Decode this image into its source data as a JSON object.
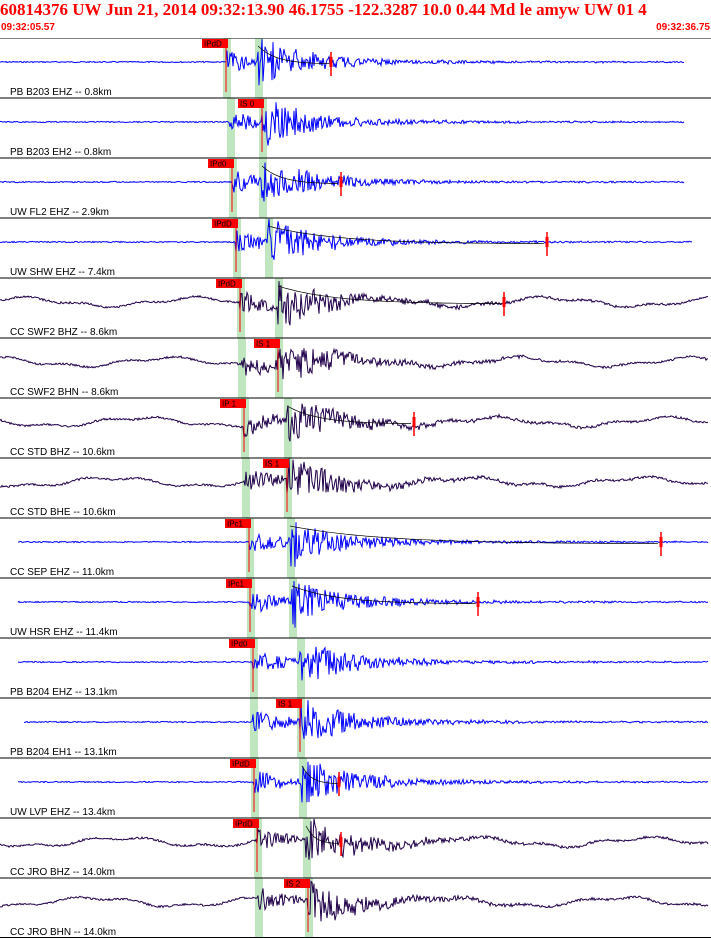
{
  "header": {
    "title": "60814376 UW Jun 21, 2014 09:32:13.90   46.1755 -122.3287 10.0 0.44 Md le amyw UW 01   4",
    "start_time": "09:32:05.57",
    "end_time": "09:32:36.75"
  },
  "colors": {
    "accent": "#ff0000",
    "trace_blue": "#0000ff",
    "trace_dark": "#20004a",
    "window_green": "#bfe6bf",
    "gridline": "#000000"
  },
  "chart_data": {
    "type": "line",
    "title": "60814376 UW Jun 21, 2014 09:32:13.90   46.1755 -122.3287 10.0 0.44 Md le amyw UW 01   4",
    "x_range": [
      "09:32:05.57",
      "09:32:36.75"
    ],
    "grid": true,
    "traces": [
      {
        "label": "PB B203 EHZ -- 0.8km",
        "pick": "IPdD",
        "color": "blue"
      },
      {
        "label": "PB B203 EH2 -- 0.8km",
        "pick": "IS 0",
        "color": "blue"
      },
      {
        "label": "UW FL2 EHZ -- 2.9km",
        "pick": "IPd0",
        "color": "blue"
      },
      {
        "label": "UW SHW EHZ -- 7.4km",
        "pick": "IPdD",
        "color": "blue"
      },
      {
        "label": "CC SWF2 BHZ -- 8.6km",
        "pick": "IPdD",
        "color": "dark"
      },
      {
        "label": "CC SWF2 BHN -- 8.6km",
        "pick": "IS 1",
        "color": "dark"
      },
      {
        "label": "CC STD BHZ -- 10.6km",
        "pick": "IP 1",
        "color": "dark"
      },
      {
        "label": "CC STD BHE -- 10.6km",
        "pick": "IS 1",
        "color": "dark"
      },
      {
        "label": "CC SEP EHZ -- 11.0km",
        "pick": "IPc1",
        "color": "blue"
      },
      {
        "label": "UW HSR EHZ -- 11.4km",
        "pick": "IPc1",
        "color": "blue"
      },
      {
        "label": "PB B204 EHZ -- 13.1km",
        "pick": "IPd0",
        "color": "blue"
      },
      {
        "label": "PB B204 EH1 -- 13.1km",
        "pick": "IS 1",
        "color": "blue"
      },
      {
        "label": "UW LVP EHZ -- 13.4km",
        "pick": "IPdD",
        "color": "blue"
      },
      {
        "label": "CC JRO BHZ -- 14.0km",
        "pick": "IPdD",
        "color": "dark"
      },
      {
        "label": "CC JRO BHN -- 14.0km",
        "pick": "IS 2",
        "color": "dark"
      }
    ]
  }
}
